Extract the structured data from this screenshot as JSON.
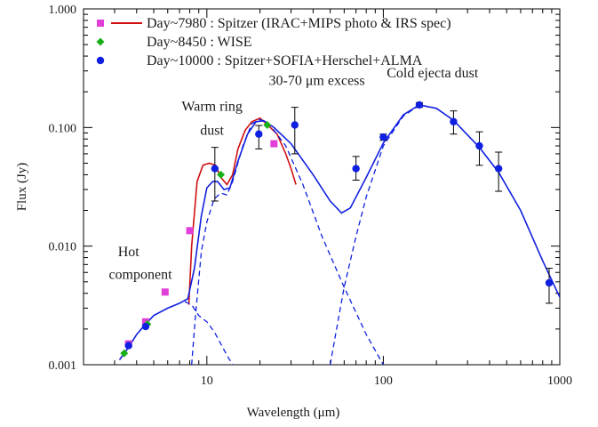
{
  "chart_data": {
    "type": "scatter",
    "xscale": "log",
    "yscale": "log",
    "xlim": [
      2,
      1000
    ],
    "ylim": [
      0.001,
      1.0
    ],
    "xlabel": "Wavelength (μm)",
    "ylabel": "Flux (Jy)",
    "xticks": [
      {
        "value": 10,
        "label": "10"
      },
      {
        "value": 100,
        "label": "100"
      },
      {
        "value": 1000,
        "label": "1000"
      }
    ],
    "yticks": [
      {
        "value": 0.001,
        "label": "0.001"
      },
      {
        "value": 0.01,
        "label": "0.010"
      },
      {
        "value": 0.1,
        "label": "0.100"
      },
      {
        "value": 1.0,
        "label": "1.000"
      }
    ],
    "legend": {
      "placement": "top-left",
      "entries": [
        {
          "label": "Day~7980 : Spitzer (IRAC+MIPS photo & IRS spec)",
          "marker": "square",
          "color": "#e040d8",
          "line_color": "#d01010"
        },
        {
          "label": "Day~8450 : WISE",
          "marker": "diamond",
          "color": "#18b018"
        },
        {
          "label": "Day~10000 : Spitzer+SOFIA+Herschel+ALMA",
          "marker": "circle",
          "color": "#1020e0"
        }
      ]
    },
    "annotations": [
      {
        "text": "Warm ring",
        "x": 10.7,
        "y": 0.138
      },
      {
        "text": "dust",
        "x": 10.7,
        "y": 0.087
      },
      {
        "text": "30-70 μm excess",
        "x": 42,
        "y": 0.228
      },
      {
        "text": "Cold ejecta dust",
        "x": 190,
        "y": 0.264
      },
      {
        "text": "Hot",
        "x": 3.6,
        "y": 0.0082
      },
      {
        "text": "component",
        "x": 4.2,
        "y": 0.0053
      }
    ],
    "series": [
      {
        "name": "Day~7980 : Spitzer (IRAC+MIPS photo & IRS spec)",
        "kind": "points",
        "marker": "square",
        "color": "#e040d8",
        "points": [
          [
            3.6,
            0.0015
          ],
          [
            4.5,
            0.0023
          ],
          [
            5.8,
            0.0041
          ],
          [
            8.0,
            0.0135
          ],
          [
            24,
            0.073
          ]
        ]
      },
      {
        "name": "Day~8450 : WISE",
        "kind": "points",
        "marker": "diamond",
        "color": "#18b018",
        "points": [
          [
            3.4,
            0.00125
          ],
          [
            4.6,
            0.0022
          ],
          [
            12,
            0.04
          ],
          [
            22,
            0.105
          ]
        ]
      },
      {
        "name": "Day~10000 : Spitzer+SOFIA+Herschel+ALMA",
        "kind": "points_with_errors",
        "marker": "circle",
        "color": "#1020e0",
        "points": [
          [
            3.6,
            0.00145,
            0.00145,
            0.00145
          ],
          [
            4.5,
            0.0021,
            0.0021,
            0.0021
          ],
          [
            11.1,
            0.045,
            0.024,
            0.068
          ],
          [
            19.7,
            0.088,
            0.066,
            0.104
          ],
          [
            31.5,
            0.105,
            0.06,
            0.148
          ],
          [
            70,
            0.045,
            0.036,
            0.057
          ],
          [
            100,
            0.083,
            0.078,
            0.088
          ],
          [
            160,
            0.155,
            0.148,
            0.162
          ],
          [
            250,
            0.112,
            0.088,
            0.138
          ],
          [
            350,
            0.07,
            0.048,
            0.092
          ],
          [
            450,
            0.045,
            0.029,
            0.062
          ],
          [
            870,
            0.0049,
            0.0033,
            0.0065
          ]
        ]
      },
      {
        "kind": "line",
        "style": "solid",
        "color": "#d01010",
        "points": [
          [
            7.9,
            0.0032
          ],
          [
            8.2,
            0.01
          ],
          [
            8.8,
            0.035
          ],
          [
            9.5,
            0.048
          ],
          [
            10.3,
            0.05
          ],
          [
            11.2,
            0.048
          ],
          [
            12.0,
            0.038
          ],
          [
            13.0,
            0.033
          ],
          [
            14.0,
            0.04
          ],
          [
            15.0,
            0.066
          ],
          [
            16.5,
            0.095
          ],
          [
            18.0,
            0.112
          ],
          [
            20.0,
            0.12
          ],
          [
            22.0,
            0.106
          ],
          [
            25.0,
            0.088
          ],
          [
            28.0,
            0.06
          ],
          [
            30.0,
            0.045
          ],
          [
            32.0,
            0.033
          ]
        ]
      },
      {
        "kind": "line",
        "style": "solid",
        "color": "#1020e0",
        "points": [
          [
            3.2,
            0.0011
          ],
          [
            3.6,
            0.0014
          ],
          [
            4.0,
            0.0018
          ],
          [
            4.5,
            0.0022
          ],
          [
            5.0,
            0.0026
          ],
          [
            6.0,
            0.003
          ],
          [
            7.0,
            0.0033
          ],
          [
            7.8,
            0.0036
          ],
          [
            8.5,
            0.0065
          ],
          [
            9.3,
            0.018
          ],
          [
            10.0,
            0.031
          ],
          [
            10.8,
            0.035
          ],
          [
            11.5,
            0.035
          ],
          [
            12.5,
            0.03
          ],
          [
            13.5,
            0.031
          ],
          [
            15.0,
            0.052
          ],
          [
            17.0,
            0.088
          ],
          [
            19.0,
            0.112
          ],
          [
            21.0,
            0.114
          ],
          [
            24.0,
            0.1
          ],
          [
            30.0,
            0.073
          ],
          [
            40.0,
            0.04
          ],
          [
            50.0,
            0.024
          ],
          [
            58.0,
            0.019
          ],
          [
            65.0,
            0.021
          ],
          [
            80.0,
            0.038
          ],
          [
            100.0,
            0.074
          ],
          [
            130.0,
            0.128
          ],
          [
            160.0,
            0.155
          ],
          [
            200.0,
            0.145
          ],
          [
            250.0,
            0.115
          ],
          [
            350.0,
            0.068
          ],
          [
            450.0,
            0.042
          ],
          [
            600.0,
            0.02
          ],
          [
            800.0,
            0.0075
          ],
          [
            1000.0,
            0.0037
          ]
        ]
      },
      {
        "kind": "line",
        "style": "dashed",
        "color": "#1020e0",
        "points": [
          [
            8.2,
            0.001
          ],
          [
            8.6,
            0.0025
          ],
          [
            9.3,
            0.009
          ],
          [
            10.0,
            0.016
          ],
          [
            11.0,
            0.025
          ],
          [
            12.0,
            0.028
          ],
          [
            13.0,
            0.027
          ],
          [
            14.0,
            0.035
          ],
          [
            16.0,
            0.07
          ],
          [
            18.0,
            0.108
          ],
          [
            20.0,
            0.117
          ],
          [
            23.0,
            0.103
          ],
          [
            28.0,
            0.07
          ],
          [
            35.0,
            0.033
          ],
          [
            45.0,
            0.012
          ],
          [
            60.0,
            0.0045
          ],
          [
            80.0,
            0.0018
          ],
          [
            100.0,
            0.001
          ]
        ]
      },
      {
        "kind": "line",
        "style": "dashed",
        "color": "#1020e0",
        "points": [
          [
            7.5,
            0.0034
          ],
          [
            8.2,
            0.0032
          ],
          [
            9.0,
            0.0026
          ],
          [
            10.0,
            0.0023
          ],
          [
            11.0,
            0.0019
          ],
          [
            12.0,
            0.0015
          ],
          [
            13.0,
            0.0012
          ],
          [
            14.0,
            0.001
          ]
        ]
      },
      {
        "kind": "line",
        "style": "dashed",
        "color": "#1020e0",
        "points": [
          [
            50.0,
            0.001
          ],
          [
            55.0,
            0.0022
          ],
          [
            60.0,
            0.0045
          ],
          [
            70.0,
            0.012
          ],
          [
            80.0,
            0.026
          ],
          [
            100.0,
            0.07
          ],
          [
            130.0,
            0.125
          ],
          [
            160.0,
            0.154
          ]
        ]
      }
    ]
  }
}
